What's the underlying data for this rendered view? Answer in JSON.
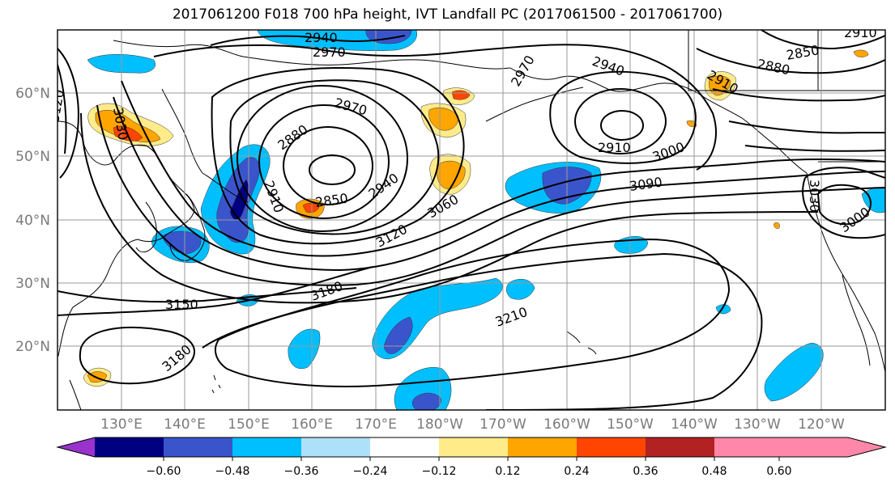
{
  "title": "2017061200 F018 700 hPa height, IVT Landfall PC (2017061500 - 2017061700)",
  "map": {
    "lat_labels": [
      "60°N",
      "50°N",
      "40°N",
      "30°N",
      "20°N"
    ],
    "lon_labels": [
      "130°E",
      "140°E",
      "150°E",
      "160°E",
      "170°E",
      "180°W",
      "170°W",
      "160°W",
      "150°W",
      "140°W",
      "130°W",
      "120°W"
    ],
    "contour_labels": [
      "2940",
      "2970",
      "2970",
      "2880",
      "2850",
      "2910",
      "2940",
      "3060",
      "3120",
      "3030",
      "3150",
      "3180",
      "3180",
      "3210",
      "2910",
      "2940",
      "2970",
      "2910",
      "3000",
      "3090",
      "2880",
      "2850",
      "2910",
      "3030",
      "3000",
      "3120"
    ]
  },
  "colorbar": {
    "tick_labels": [
      "−0.60",
      "−0.48",
      "−0.36",
      "−0.24",
      "−0.12",
      "0.12",
      "0.24",
      "0.36",
      "0.48",
      "0.60"
    ],
    "colors": [
      "#9933cc",
      "#000080",
      "#3a55cc",
      "#00bfff",
      "#afe0fa",
      "#ffffff",
      "#ffeb8a",
      "#ffa500",
      "#ff4500",
      "#b22222",
      "#ff88aa"
    ]
  },
  "colors": {
    "neg_light": "#afe0fa",
    "neg_mid": "#00bfff",
    "neg_dark": "#3a55cc",
    "pos_light": "#ffeb8a",
    "pos_mid": "#ffa500",
    "pos_dark": "#ff4500"
  }
}
